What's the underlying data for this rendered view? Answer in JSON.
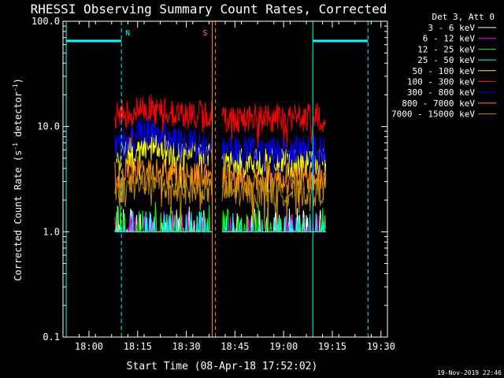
{
  "chart_data": {
    "type": "line",
    "title": "RHESSI Observing Summary Count Rates, Corrected",
    "xlabel": "Start Time (08-Apr-18 17:52:02)",
    "ylabel": "Corrected Count Rate (s",
    "ylabel_sup1": "-1",
    "ylabel_mid": " detector",
    "ylabel_sup2": "-1",
    "ylabel_end": ")",
    "yscale": "log",
    "ylim": [
      0.1,
      100.0
    ],
    "xlim": [
      "17:52",
      "19:32"
    ],
    "x_ticks": [
      "18:00",
      "18:15",
      "18:30",
      "18:45",
      "19:00",
      "19:15",
      "19:30"
    ],
    "y_ticks": [
      "0.1",
      "1.0",
      "10.0",
      "100.0"
    ],
    "legend_header": "Det 3, Att 0",
    "legend_position": "right",
    "series": [
      {
        "name": "3 - 6 keV",
        "color": "#ffffff",
        "segments": [
          {
            "t0": "18:08",
            "t1": "18:38",
            "base": 1.0,
            "peak": 1.8
          },
          {
            "t0": "18:41",
            "t1": "19:13",
            "base": 1.0,
            "peak": 1.7
          }
        ]
      },
      {
        "name": "6 - 12 keV",
        "color": "#ff00ff",
        "segments": [
          {
            "t0": "18:08",
            "t1": "18:38",
            "base": 1.0,
            "peak": 1.6
          },
          {
            "t0": "18:41",
            "t1": "19:13",
            "base": 1.0,
            "peak": 1.5
          }
        ]
      },
      {
        "name": "12 - 25 keV",
        "color": "#00ff00",
        "segments": [
          {
            "t0": "18:08",
            "t1": "18:38",
            "base": 1.0,
            "peak": 2.0
          },
          {
            "t0": "18:41",
            "t1": "19:13",
            "base": 1.0,
            "peak": 1.9
          }
        ]
      },
      {
        "name": "25 - 50 keV",
        "color": "#00ffff",
        "segments": [
          {
            "t0": "18:08",
            "t1": "18:38",
            "base": 1.0,
            "peak": 1.6
          },
          {
            "t0": "18:41",
            "t1": "19:13",
            "base": 1.0,
            "peak": 1.5
          }
        ]
      },
      {
        "name": "50 - 100 keV",
        "color": "#ffff00",
        "segments": [
          {
            "t0": "18:08",
            "t1": "18:38",
            "base": 5.5,
            "peak": 6.5
          },
          {
            "t0": "18:41",
            "t1": "19:13",
            "base": 4.5,
            "peak": 5.5
          }
        ]
      },
      {
        "name": "100 - 300 keV",
        "color": "#ff0000",
        "segments": [
          {
            "t0": "18:08",
            "t1": "18:38",
            "base": 13.0,
            "peak": 15.0
          },
          {
            "t0": "18:41",
            "t1": "19:13",
            "base": 12.0,
            "peak": 13.5
          }
        ]
      },
      {
        "name": "300 - 800 keV",
        "color": "#0000ff",
        "segments": [
          {
            "t0": "18:08",
            "t1": "18:38",
            "base": 7.0,
            "peak": 9.0
          },
          {
            "t0": "18:41",
            "t1": "19:13",
            "base": 6.0,
            "peak": 7.0
          }
        ]
      },
      {
        "name": "800 - 7000 keV",
        "color": "#ff8c00",
        "segments": [
          {
            "t0": "18:08",
            "t1": "18:38",
            "base": 3.5,
            "peak": 4.0
          },
          {
            "t0": "18:41",
            "t1": "19:13",
            "base": 3.2,
            "peak": 3.6
          }
        ]
      },
      {
        "name": "7000 - 15000 keV",
        "color": "#b8860b",
        "segments": [
          {
            "t0": "18:08",
            "t1": "18:38",
            "base": 2.5,
            "peak": 3.0
          },
          {
            "t0": "18:41",
            "t1": "19:13",
            "base": 2.4,
            "peak": 2.8
          }
        ]
      }
    ],
    "annotations": [
      {
        "label": "N",
        "time": "18:10",
        "color": "#00ffff",
        "style": "dashed"
      },
      {
        "label": "S",
        "time": "18:38",
        "color": "#ff8c00",
        "style": "dashed"
      }
    ],
    "markers": [
      {
        "kind": "solid",
        "time": "17:53",
        "color": "#00ffff"
      },
      {
        "kind": "dashed",
        "time": "18:10",
        "color": "#00ffff"
      },
      {
        "kind": "solid",
        "time": "18:38",
        "color": "#ff8c00"
      },
      {
        "kind": "dashed",
        "time": "18:39",
        "color": "#ff8c00"
      },
      {
        "kind": "solid",
        "time": "19:09",
        "color": "#00ffff"
      },
      {
        "kind": "dashed",
        "time": "19:26",
        "color": "#00ffff"
      }
    ],
    "night_bars": [
      {
        "t0": "17:53",
        "t1": "18:10",
        "value": 65,
        "color": "#00ffff"
      },
      {
        "t0": "19:09",
        "t1": "19:26",
        "value": 65,
        "color": "#00ffff"
      }
    ]
  },
  "footer_timestamp": "19-Nov-2019 22:46"
}
